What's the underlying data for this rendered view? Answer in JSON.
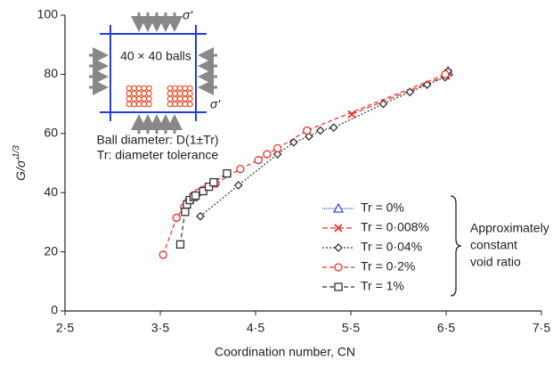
{
  "chart_data": {
    "type": "line",
    "x_label": "Coordination number, CN",
    "y_label": "G/σ′",
    "y_label_exponent": "1/3",
    "xlim": [
      2.5,
      7.5
    ],
    "xticks": [
      {
        "value": 2.5,
        "label": "2·5"
      },
      {
        "value": 3.5,
        "label": "3·5"
      },
      {
        "value": 4.5,
        "label": "4·5"
      },
      {
        "value": 5.5,
        "label": "5·5"
      },
      {
        "value": 6.5,
        "label": "6·5"
      },
      {
        "value": 7.5,
        "label": "7·5"
      }
    ],
    "ylim": [
      0,
      100
    ],
    "yticks": [
      0,
      20,
      40,
      60,
      80,
      100
    ],
    "series": [
      {
        "name": "Tr = 0%",
        "color": "#2f4fd8",
        "marker": "triangle",
        "dash": "1,1",
        "x": [
          6.52
        ],
        "values": [
          81
        ]
      },
      {
        "name": "Tr = 0·008%",
        "color": "#e8302a",
        "marker": "x",
        "dash": "6,3",
        "x": [
          5.51,
          6.5,
          6.52
        ],
        "values": [
          66.5,
          79.5,
          80.5
        ]
      },
      {
        "name": "Tr = 0·04%",
        "color": "#333333",
        "marker": "diamond",
        "dash": "2,2",
        "x": [
          3.92,
          4.32,
          4.73,
          4.9,
          5.06,
          5.18,
          5.32,
          5.84,
          6.12,
          6.3,
          6.49,
          6.52
        ],
        "values": [
          32,
          42.5,
          53,
          57,
          59,
          61,
          62,
          70,
          74,
          76.5,
          79,
          81
        ]
      },
      {
        "name": "Tr = 0·2%",
        "color": "#e8302a",
        "marker": "circle",
        "dash": "5,3",
        "x": [
          3.53,
          3.67,
          3.75,
          3.8,
          3.85,
          3.9,
          3.95,
          4.01,
          4.08,
          4.34,
          4.53,
          4.62,
          4.73,
          5.04,
          6.49
        ],
        "values": [
          19,
          31.5,
          35,
          37.5,
          39,
          40,
          41,
          42,
          43,
          48,
          51,
          53,
          55,
          61,
          80
        ]
      },
      {
        "name": "Tr = 1%",
        "color": "#333333",
        "marker": "square",
        "dash": "5,3",
        "x": [
          3.71,
          3.76,
          3.78,
          3.81,
          3.85,
          3.87,
          3.95,
          4.01,
          4.06,
          4.2
        ],
        "values": [
          22.5,
          33.5,
          36,
          37.5,
          38.5,
          39,
          40.5,
          42,
          43.5,
          46.5
        ]
      }
    ],
    "annotation": [
      "Approximately",
      "constant",
      "void ratio"
    ],
    "inset": {
      "stress_top": "σ′",
      "stress_side": "σ′",
      "balls": "40 × 40 balls",
      "note": [
        "Ball diameter: D(1±Tr)",
        "Tr: diameter tolerance"
      ]
    }
  }
}
